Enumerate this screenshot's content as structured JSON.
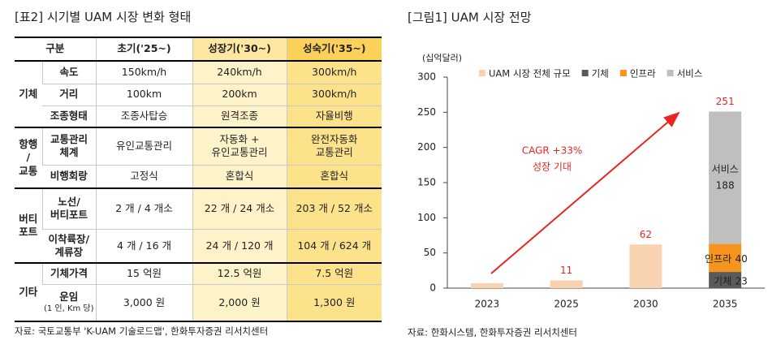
{
  "header": {
    "title": "[표2]  시기별 UAM 시장 변화 형태"
  },
  "table": {
    "columns": [
      "구분",
      "초기('25~)",
      "성장기('30~)",
      "성숙기('35~)"
    ],
    "groups": [
      {
        "label": "기체",
        "rows": [
          {
            "item": "속도",
            "cells": [
              "150km/h",
              "240km/h",
              "300km/h"
            ]
          },
          {
            "item": "거리",
            "cells": [
              "100km",
              "200km",
              "300km/h"
            ]
          },
          {
            "item": "조종형태",
            "cells": [
              "조종사탑승",
              "원격조종",
              "자율비행"
            ]
          }
        ]
      },
      {
        "label": "항행\n/\n교통",
        "rows": [
          {
            "item": "교통관리\n체계",
            "cells": [
              "유인교통관리",
              "자동화 +\n유인교통관리",
              "완전자동화\n교통관리"
            ]
          },
          {
            "item": "비행회랑",
            "cells": [
              "고정식",
              "혼합식",
              "혼합식"
            ]
          }
        ]
      },
      {
        "label": "버티\n포트",
        "rows": [
          {
            "item": "노선/\n버티포트",
            "cells": [
              "2 개 / 4 개소",
              "22 개 / 24 개소",
              "203 개 / 52 개소"
            ]
          },
          {
            "item": "이착륙장/\n계류장",
            "cells": [
              "4 개 / 16 개",
              "24 개 / 120 개",
              "104 개 / 624 개"
            ]
          }
        ]
      },
      {
        "label": "기타",
        "rows": [
          {
            "item": "기체가격",
            "cells": [
              "15 억원",
              "12.5 억원",
              "7.5 억원"
            ]
          },
          {
            "item": "운임",
            "note": "(1 인, Km 당)",
            "cells": [
              "3,000 원",
              "2,000 원",
              "1,300 원"
            ]
          }
        ]
      }
    ],
    "source": "자료: 국토교통부 'K-UAM 기술로드맵', 한화투자증권 리서치센터"
  },
  "chart_data": {
    "type": "bar",
    "title": "[그림1]  UAM 시장 전망",
    "unit": "(십억달러)",
    "categories": [
      "2023",
      "2025",
      "2030",
      "2035"
    ],
    "series": [
      {
        "name": "UAM 시장 전체 규모",
        "color": "#f9d2b2",
        "values": [
          7,
          11,
          62,
          null
        ],
        "value_labels": [
          null,
          "11",
          "62",
          null
        ]
      },
      {
        "name": "기체",
        "color": "#5a5a5a",
        "stack": true,
        "values": [
          null,
          null,
          null,
          23
        ]
      },
      {
        "name": "인프라",
        "color": "#f7941d",
        "stack": true,
        "values": [
          null,
          null,
          null,
          40
        ]
      },
      {
        "name": "서비스",
        "color": "#bfbfbf",
        "stack": true,
        "values": [
          null,
          null,
          null,
          188
        ]
      }
    ],
    "stack_totals": [
      null,
      null,
      null,
      251
    ],
    "annotations": [
      "CAGR +33%",
      "성장 기대"
    ],
    "ylim": [
      0,
      300
    ],
    "yticks": [
      0,
      50,
      100,
      150,
      200,
      250,
      300
    ],
    "grid": false,
    "legend": "top",
    "source": "자료: 한화시스템, 한화투자증권 리서치센터"
  }
}
